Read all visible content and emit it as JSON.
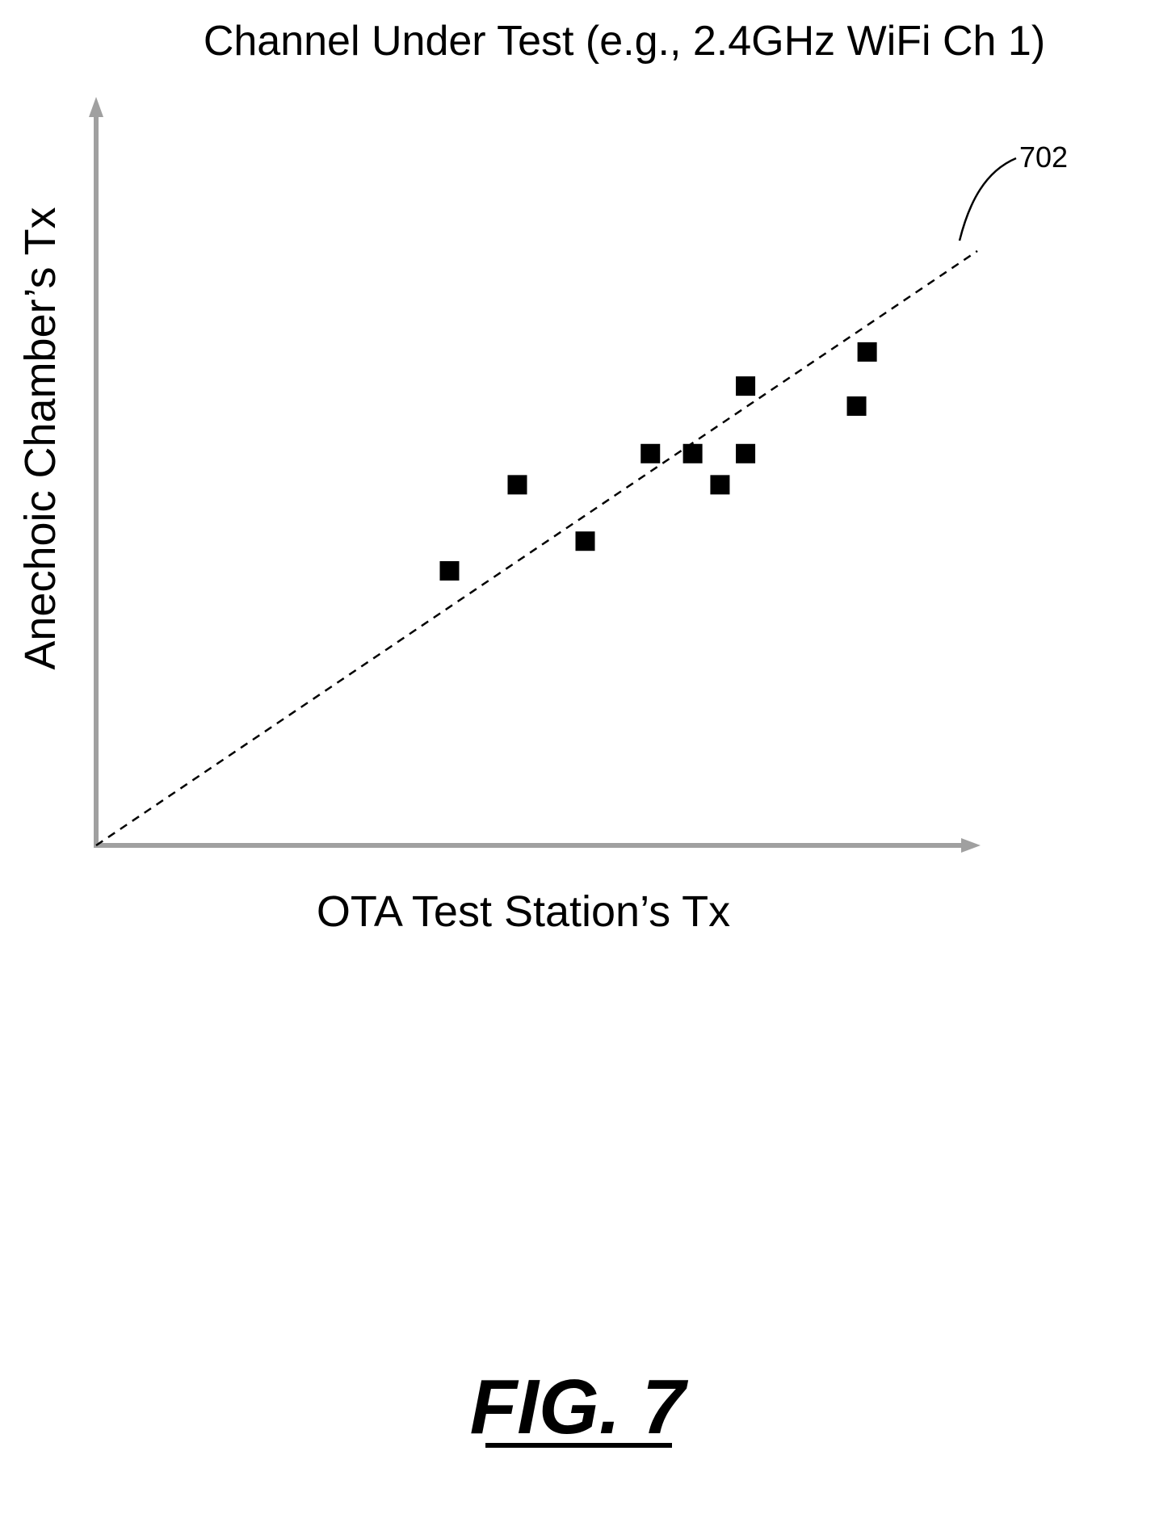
{
  "chart_data": {
    "type": "scatter",
    "title": "Channel Under Test (e.g., 2.4GHz WiFi Ch 1)",
    "xlabel": "OTA Test Station’s Tx",
    "ylabel": "Anechoic Chamber’s Tx",
    "xlim": [
      0,
      100
    ],
    "ylim": [
      0,
      100
    ],
    "grid": false,
    "points": [
      {
        "x": 40.1,
        "y": 37.0
      },
      {
        "x": 47.8,
        "y": 48.6
      },
      {
        "x": 55.5,
        "y": 41.0
      },
      {
        "x": 62.9,
        "y": 52.8
      },
      {
        "x": 67.7,
        "y": 52.8
      },
      {
        "x": 70.8,
        "y": 48.6
      },
      {
        "x": 73.7,
        "y": 52.8
      },
      {
        "x": 73.7,
        "y": 61.9
      },
      {
        "x": 86.3,
        "y": 59.2
      },
      {
        "x": 87.5,
        "y": 66.5
      }
    ],
    "trend_line": {
      "style": "dashed",
      "x": [
        0,
        100
      ],
      "y": [
        0,
        80.1
      ]
    },
    "annotations": [
      {
        "label": "702",
        "target": "trend_line"
      }
    ],
    "marker": "square",
    "point_color": "#000000",
    "axis_color": "#a0a0a0"
  },
  "figure": {
    "caption": "FIG. 7"
  }
}
